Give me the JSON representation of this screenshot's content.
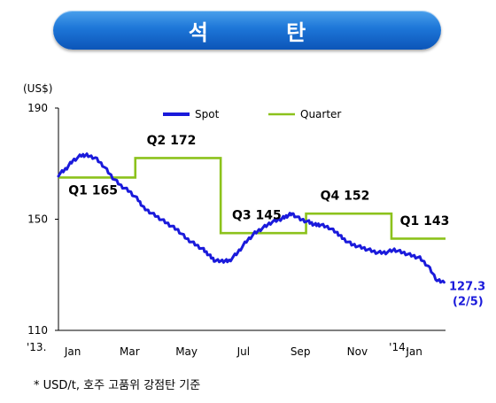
{
  "title": "석    탄",
  "footnote": "* USD/t, 호주 고품위 강점탄 기준",
  "chart_data": {
    "type": "line",
    "ylabel": "(US$)",
    "ylim": [
      110,
      190
    ],
    "yticks": [
      190,
      150,
      110
    ],
    "xlim": [
      0,
      13.6
    ],
    "x_tick_labels": [
      {
        "x": 0.5,
        "label": "Jan"
      },
      {
        "x": 2.5,
        "label": "Mar"
      },
      {
        "x": 4.5,
        "label": "May"
      },
      {
        "x": 6.5,
        "label": "Jul"
      },
      {
        "x": 8.5,
        "label": "Sep"
      },
      {
        "x": 10.5,
        "label": "Nov"
      },
      {
        "x": 12.5,
        "label": "Jan"
      }
    ],
    "year_labels": [
      {
        "x": 0.0,
        "label": "'13."
      },
      {
        "x": 11.8,
        "label": "'14."
      }
    ],
    "legend": {
      "placement": "top",
      "entries": [
        "Spot",
        "Quarter"
      ]
    },
    "colors": {
      "spot": "#1a1adb",
      "quarter": "#8cc21c"
    },
    "series": [
      {
        "name": "Spot",
        "x": [
          0.0,
          0.25,
          0.5,
          0.8,
          1.0,
          1.3,
          1.6,
          1.9,
          2.2,
          2.5,
          2.8,
          3.0,
          3.3,
          3.6,
          3.9,
          4.2,
          4.5,
          4.8,
          5.1,
          5.3,
          5.5,
          5.8,
          6.0,
          6.3,
          6.6,
          6.9,
          7.2,
          7.5,
          7.8,
          8.0,
          8.2,
          8.5,
          8.8,
          9.0,
          9.2,
          9.5,
          9.8,
          10.0,
          10.3,
          10.6,
          10.9,
          11.2,
          11.5,
          11.8,
          12.1,
          12.4,
          12.7,
          13.0,
          13.3,
          13.55
        ],
        "y": [
          166,
          168,
          171,
          173,
          173,
          172,
          169,
          165,
          162,
          160,
          157,
          154,
          152,
          150,
          148,
          146,
          143,
          141,
          139,
          137,
          135,
          135,
          135,
          138,
          142,
          145,
          147,
          149,
          150,
          151,
          152,
          150,
          149,
          148,
          148,
          147,
          145,
          143,
          141,
          140,
          139,
          138,
          138,
          139,
          138,
          137,
          136,
          133,
          128,
          127.3
        ]
      },
      {
        "name": "Quarter",
        "segments": [
          {
            "x0": 0.0,
            "x1": 2.7,
            "value": 165
          },
          {
            "x0": 2.7,
            "x1": 5.7,
            "value": 172
          },
          {
            "x0": 5.7,
            "x1": 8.7,
            "value": 145
          },
          {
            "x0": 8.7,
            "x1": 11.7,
            "value": 152
          },
          {
            "x0": 11.7,
            "x1": 13.6,
            "value": 143
          }
        ]
      }
    ],
    "annotations": [
      {
        "text": "Q1 165",
        "x": 0.35,
        "y": 159
      },
      {
        "text": "Q2 172",
        "x": 3.1,
        "y": 177
      },
      {
        "text": "Q3 145",
        "x": 6.1,
        "y": 150
      },
      {
        "text": "Q4 152",
        "x": 9.2,
        "y": 157
      },
      {
        "text": "Q1 143",
        "x": 12.0,
        "y": 148
      }
    ],
    "end_label": {
      "text": "127.3",
      "text2": "(2/5)",
      "x": 13.6,
      "y": 127.3
    }
  }
}
